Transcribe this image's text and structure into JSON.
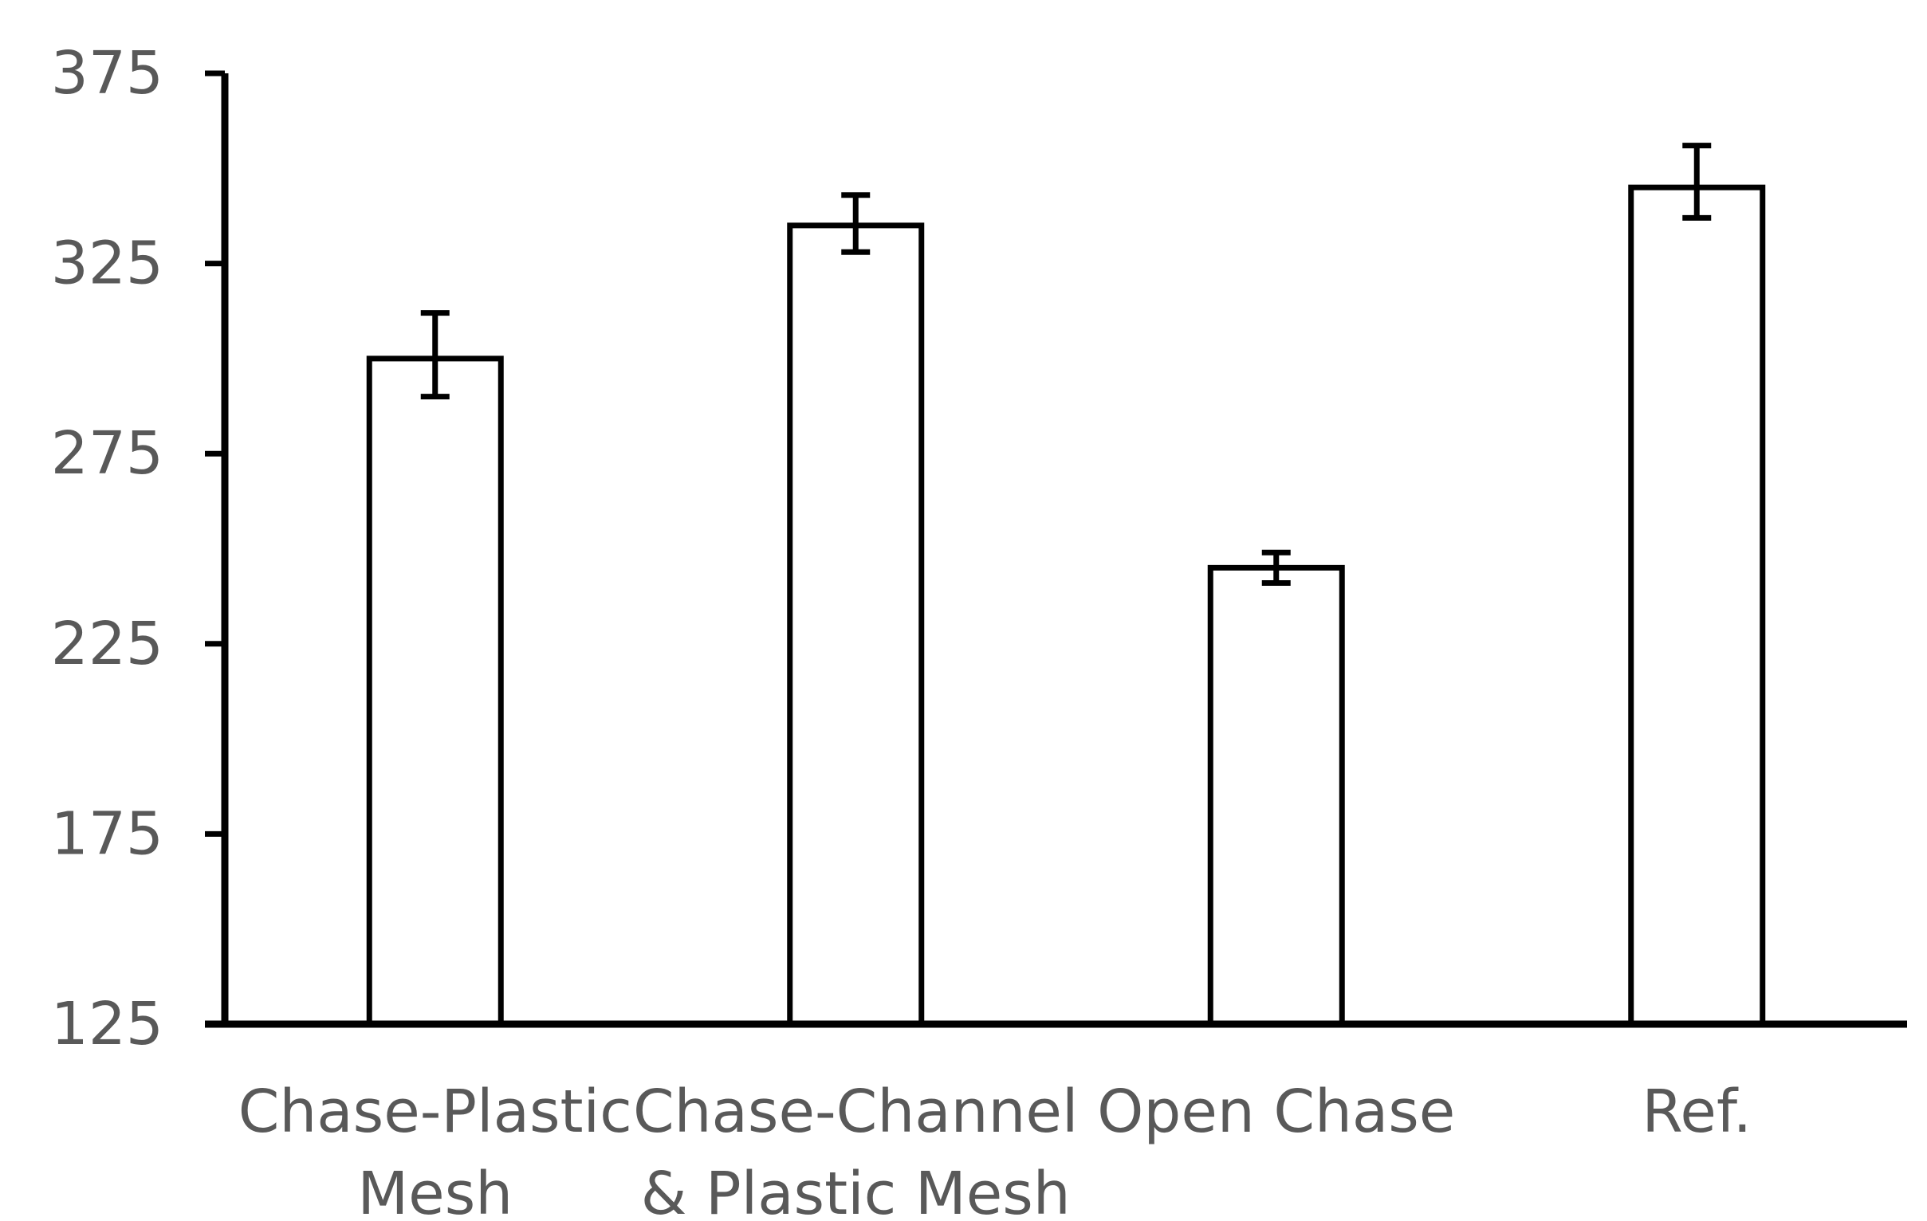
{
  "chart_data": {
    "type": "bar",
    "categories": [
      [
        "Chase-Plastic",
        "Mesh"
      ],
      [
        "Chase-Channel",
        "& Plastic Mesh"
      ],
      [
        "Open Chase"
      ],
      [
        "Ref."
      ]
    ],
    "values": [
      300,
      335,
      245,
      345
    ],
    "error_low": [
      290,
      328,
      241,
      337
    ],
    "error_high": [
      312,
      343,
      249,
      356
    ],
    "ylim": [
      125,
      375
    ],
    "yticks": [
      125,
      175,
      225,
      275,
      325,
      375
    ],
    "ytick_labels": [
      "125",
      "175",
      "225",
      "275",
      "325",
      "375"
    ],
    "title": "",
    "xlabel": "",
    "ylabel": "",
    "grid": false,
    "colors": {
      "bar_fill": "#ffffff",
      "bar_stroke": "#000000",
      "axis": "#000000",
      "tick_label": "#595959"
    }
  }
}
